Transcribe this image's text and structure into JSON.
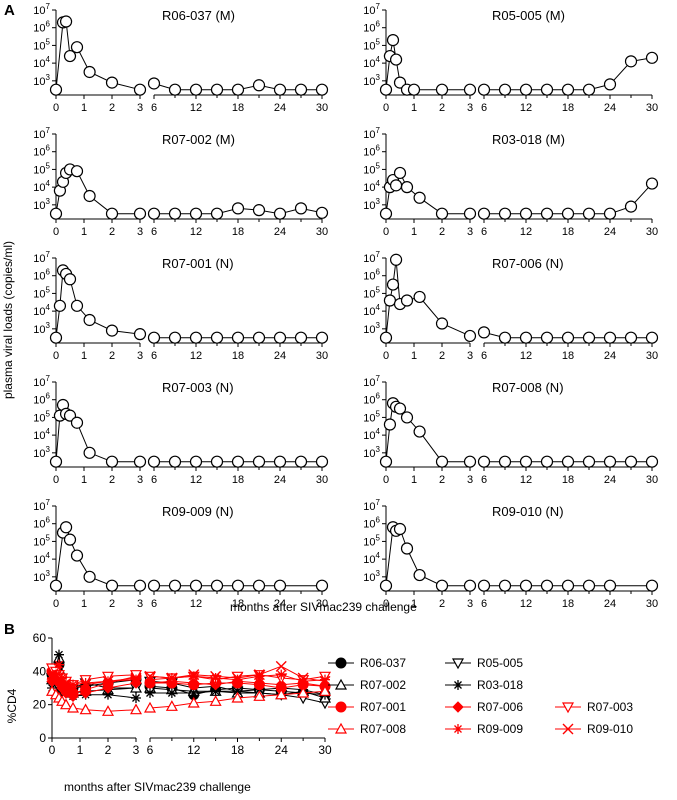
{
  "panel_a_label": "A",
  "panel_b_label": "B",
  "chart_data": [
    {
      "panel": "A",
      "type": "line",
      "log_scale_y": true,
      "ylabel": "plasma viral loads (copies/ml)",
      "xlabel": "months after SIVmac239 challenge",
      "y_ticks": [
        "10^3",
        "10^4",
        "10^5",
        "10^6",
        "10^7"
      ],
      "x_ticks_early": [
        0,
        1,
        2,
        3
      ],
      "x_ticks_late": [
        6,
        12,
        18,
        24,
        30
      ],
      "xlim_early": [
        0,
        3
      ],
      "xlim_late": [
        6,
        30
      ],
      "ylim_log10": [
        2.2,
        7
      ],
      "marker": "open-circle",
      "series": [
        {
          "name": "R06-037 (M)",
          "early": {
            "x": [
              0,
              0.25,
              0.36,
              0.5,
              0.75,
              1.2,
              2,
              3
            ],
            "y": [
              2.5,
              6.3,
              6.35,
              4.4,
              4.9,
              3.5,
              2.9,
              2.5
            ]
          },
          "late": {
            "x": [
              6,
              9,
              12,
              15,
              18,
              21,
              24,
              27,
              30
            ],
            "y": [
              2.85,
              2.5,
              2.5,
              2.5,
              2.5,
              2.75,
              2.5,
              2.5,
              2.5
            ]
          }
        },
        {
          "name": "R05-005 (M)",
          "early": {
            "x": [
              0,
              0.14,
              0.25,
              0.36,
              0.5,
              0.75,
              1,
              2,
              3
            ],
            "y": [
              2.5,
              4.4,
              5.3,
              4.2,
              2.9,
              2.5,
              2.5,
              2.5,
              2.5
            ]
          },
          "late": {
            "x": [
              6,
              9,
              12,
              15,
              18,
              21,
              24,
              27,
              30
            ],
            "y": [
              2.5,
              2.5,
              2.5,
              2.5,
              2.5,
              2.5,
              2.8,
              4.1,
              4.3
            ]
          }
        },
        {
          "name": "R07-002 (M)",
          "early": {
            "x": [
              0,
              0.14,
              0.25,
              0.36,
              0.5,
              0.75,
              1.2,
              2,
              3
            ],
            "y": [
              2.5,
              3.8,
              4.3,
              4.8,
              5.0,
              4.9,
              3.5,
              2.5,
              2.5
            ]
          },
          "late": {
            "x": [
              6,
              9,
              12,
              15,
              18,
              21,
              24,
              27,
              30
            ],
            "y": [
              2.5,
              2.5,
              2.5,
              2.5,
              2.8,
              2.7,
              2.5,
              2.8,
              2.55
            ]
          }
        },
        {
          "name": "R03-018 (M)",
          "early": {
            "x": [
              0,
              0.14,
              0.25,
              0.36,
              0.5,
              0.75,
              1.2,
              2,
              3
            ],
            "y": [
              2.5,
              4.0,
              4.4,
              4.1,
              4.8,
              4.0,
              3.4,
              2.5,
              2.5
            ]
          },
          "late": {
            "x": [
              6,
              9,
              12,
              15,
              18,
              21,
              24,
              27,
              30
            ],
            "y": [
              2.5,
              2.5,
              2.5,
              2.5,
              2.5,
              2.5,
              2.5,
              2.9,
              4.2
            ]
          }
        },
        {
          "name": "R07-001 (N)",
          "early": {
            "x": [
              0,
              0.14,
              0.25,
              0.36,
              0.5,
              0.75,
              1.2,
              2,
              3
            ],
            "y": [
              2.5,
              4.3,
              6.3,
              6.1,
              5.8,
              4.3,
              3.5,
              2.9,
              2.7
            ]
          },
          "late": {
            "x": [
              6,
              9,
              12,
              15,
              18,
              21,
              24,
              27,
              30
            ],
            "y": [
              2.5,
              2.5,
              2.5,
              2.5,
              2.5,
              2.5,
              2.5,
              2.5,
              2.5
            ]
          }
        },
        {
          "name": "R07-006 (N)",
          "early": {
            "x": [
              0,
              0.14,
              0.25,
              0.36,
              0.5,
              0.75,
              1.2,
              2,
              3
            ],
            "y": [
              2.5,
              4.6,
              5.5,
              6.9,
              4.4,
              4.6,
              4.8,
              3.3,
              2.6
            ]
          },
          "late": {
            "x": [
              6,
              9,
              12,
              15,
              18,
              21,
              24,
              27,
              30
            ],
            "y": [
              2.8,
              2.5,
              2.5,
              2.5,
              2.5,
              2.5,
              2.5,
              2.5,
              2.5
            ]
          }
        },
        {
          "name": "R07-003 (N)",
          "early": {
            "x": [
              0,
              0.14,
              0.25,
              0.36,
              0.5,
              0.75,
              1.2,
              2,
              3
            ],
            "y": [
              2.5,
              5.1,
              5.7,
              5.2,
              5.1,
              4.7,
              3.0,
              2.5,
              2.5
            ]
          },
          "late": {
            "x": [
              6,
              9,
              12,
              15,
              18,
              21,
              24,
              27,
              30
            ],
            "y": [
              2.5,
              2.5,
              2.5,
              2.5,
              2.5,
              2.5,
              2.5,
              2.5,
              2.5
            ]
          }
        },
        {
          "name": "R07-008 (N)",
          "early": {
            "x": [
              0,
              0.14,
              0.25,
              0.36,
              0.5,
              0.75,
              1.2,
              2,
              3
            ],
            "y": [
              2.5,
              4.6,
              5.8,
              5.6,
              5.5,
              5.0,
              4.2,
              2.5,
              2.5
            ]
          },
          "late": {
            "x": [
              6,
              9,
              12,
              15,
              18,
              21,
              24,
              27,
              30
            ],
            "y": [
              2.5,
              2.5,
              2.5,
              2.5,
              2.5,
              2.5,
              2.5,
              2.5,
              2.5
            ]
          }
        },
        {
          "name": "R09-009 (N)",
          "early": {
            "x": [
              0,
              0.25,
              0.36,
              0.5,
              0.75,
              1.2,
              2,
              3
            ],
            "y": [
              2.5,
              5.5,
              5.8,
              5.1,
              4.2,
              3.0,
              2.5,
              2.5
            ]
          },
          "late": {
            "x": [
              6,
              9,
              12,
              15,
              18,
              21,
              24,
              30
            ],
            "y": [
              2.5,
              2.5,
              2.5,
              2.5,
              2.5,
              2.5,
              2.5,
              2.5
            ]
          }
        },
        {
          "name": "R09-010 (N)",
          "early": {
            "x": [
              0,
              0.25,
              0.36,
              0.5,
              0.75,
              1.2,
              2,
              3
            ],
            "y": [
              2.5,
              5.8,
              5.6,
              5.7,
              4.6,
              3.1,
              2.5,
              2.5
            ]
          },
          "late": {
            "x": [
              6,
              9,
              12,
              15,
              18,
              21,
              24,
              30
            ],
            "y": [
              2.5,
              2.5,
              2.5,
              2.5,
              2.5,
              2.5,
              2.5,
              2.5
            ]
          }
        }
      ]
    },
    {
      "panel": "B",
      "type": "line",
      "ylabel": "%CD4",
      "xlabel": "months after SIVmac239 challenge",
      "ylim": [
        0,
        60
      ],
      "y_ticks": [
        0,
        20,
        40,
        60
      ],
      "x_ticks_early": [
        0,
        1,
        2,
        3
      ],
      "x_ticks_late": [
        6,
        12,
        18,
        24,
        30
      ],
      "xlim_early": [
        0,
        3
      ],
      "xlim_late": [
        6,
        30
      ],
      "legend_position": "right",
      "series": [
        {
          "name": "R06-037",
          "color": "#000000",
          "marker": "filled-circle",
          "early": {
            "x": [
              0,
              0.14,
              0.25,
              0.36,
              0.5,
              0.75,
              1.2,
              2,
              3
            ],
            "y": [
              38,
              36,
              44,
              34,
              32,
              30,
              31,
              33,
              35
            ]
          },
          "late": {
            "x": [
              6,
              9,
              12,
              15,
              18,
              21,
              24,
              27,
              30
            ],
            "y": [
              31,
              30,
              26,
              29,
              30,
              29,
              28,
              27,
              26
            ]
          }
        },
        {
          "name": "R05-005",
          "color": "#000000",
          "marker": "open-triangle-down",
          "early": {
            "x": [
              0,
              0.14,
              0.25,
              0.36,
              0.5,
              0.75,
              1.2,
              2,
              3
            ],
            "y": [
              36,
              34,
              30,
              28,
              32,
              30,
              33,
              30,
              30
            ]
          },
          "late": {
            "x": [
              6,
              9,
              12,
              15,
              18,
              21,
              24,
              27,
              30
            ],
            "y": [
              34,
              33,
              30,
              31,
              28,
              27,
              26,
              24,
              21
            ]
          }
        },
        {
          "name": "R07-002",
          "color": "#000000",
          "marker": "open-triangle-up",
          "early": {
            "x": [
              0,
              0.14,
              0.25,
              0.36,
              0.5,
              0.75,
              1.2,
              2,
              3
            ],
            "y": [
              35,
              40,
              48,
              38,
              30,
              27,
              28,
              29,
              30
            ]
          },
          "late": {
            "x": [
              6,
              9,
              12,
              15,
              18,
              21,
              24,
              27,
              30
            ],
            "y": [
              30,
              29,
              28,
              28,
              27,
              27,
              26,
              28,
              24
            ]
          }
        },
        {
          "name": "R03-018",
          "color": "#000000",
          "marker": "star",
          "early": {
            "x": [
              0,
              0.14,
              0.25,
              0.36,
              0.5,
              0.75,
              1.2,
              2,
              3
            ],
            "y": [
              30,
              42,
              50,
              35,
              28,
              25,
              26,
              26,
              24
            ]
          },
          "late": {
            "x": [
              6,
              9,
              12,
              15,
              18,
              21,
              24,
              27,
              30
            ],
            "y": [
              27,
              27,
              27,
              28,
              28,
              29,
              30,
              29,
              26
            ]
          }
        },
        {
          "name": "R07-001",
          "color": "#ff0000",
          "marker": "filled-circle",
          "early": {
            "x": [
              0,
              0.14,
              0.25,
              0.36,
              0.5,
              0.75,
              1.2,
              2,
              3
            ],
            "y": [
              40,
              38,
              34,
              32,
              30,
              27,
              29,
              33,
              37
            ]
          },
          "late": {
            "x": [
              6,
              9,
              12,
              15,
              18,
              21,
              24,
              27,
              30
            ],
            "y": [
              33,
              33,
              32,
              33,
              33,
              32,
              30,
              32,
              31
            ]
          }
        },
        {
          "name": "R07-006",
          "color": "#ff0000",
          "marker": "filled-diamond",
          "early": {
            "x": [
              0,
              0.14,
              0.25,
              0.36,
              0.5,
              0.75,
              1.2,
              2,
              3
            ],
            "y": [
              34,
              36,
              33,
              30,
              27,
              25,
              27,
              30,
              33
            ]
          },
          "late": {
            "x": [
              6,
              9,
              12,
              15,
              18,
              21,
              24,
              27,
              30
            ],
            "y": [
              33,
              34,
              33,
              32,
              34,
              33,
              32,
              33,
              31
            ]
          }
        },
        {
          "name": "R07-003",
          "color": "#ff0000",
          "marker": "open-triangle-down",
          "early": {
            "x": [
              0,
              0.14,
              0.25,
              0.36,
              0.5,
              0.75,
              1.2,
              2,
              3
            ],
            "y": [
              42,
              40,
              38,
              36,
              34,
              32,
              35,
              37,
              38
            ]
          },
          "late": {
            "x": [
              6,
              9,
              12,
              15,
              18,
              21,
              24,
              27,
              30
            ],
            "y": [
              37,
              36,
              37,
              35,
              37,
              38,
              36,
              35,
              37
            ]
          }
        },
        {
          "name": "R07-008",
          "color": "#ff0000",
          "marker": "open-triangle-up",
          "early": {
            "x": [
              0,
              0.14,
              0.25,
              0.36,
              0.5,
              0.75,
              1.2,
              2,
              3
            ],
            "y": [
              28,
              26,
              24,
              22,
              20,
              18,
              17,
              16,
              17
            ]
          },
          "late": {
            "x": [
              6,
              9,
              12,
              15,
              18,
              21,
              24,
              27,
              30
            ],
            "y": [
              18,
              19,
              21,
              22,
              24,
              25,
              26,
              27,
              28
            ]
          }
        },
        {
          "name": "R09-009",
          "color": "#ff0000",
          "marker": "star",
          "early": {
            "x": [
              0,
              0.14,
              0.25,
              0.36,
              0.5,
              0.75,
              1.2,
              2,
              3
            ],
            "y": [
              36,
              38,
              44,
              36,
              33,
              32,
              33,
              34,
              35
            ]
          },
          "late": {
            "x": [
              6,
              9,
              12,
              15,
              18,
              21,
              24,
              27,
              30
            ],
            "y": [
              35,
              36,
              37,
              36,
              35,
              37,
              38,
              34,
              35
            ]
          }
        },
        {
          "name": "R09-010",
          "color": "#ff0000",
          "marker": "x",
          "early": {
            "x": [
              0,
              0.14,
              0.25,
              0.36,
              0.5,
              0.75,
              1.2,
              2,
              3
            ],
            "y": [
              38,
              37,
              36,
              34,
              32,
              30,
              32,
              34,
              36
            ]
          },
          "late": {
            "x": [
              6,
              9,
              12,
              15,
              18,
              21,
              24,
              27,
              30
            ],
            "y": [
              37,
              36,
              38,
              37,
              36,
              38,
              43,
              36,
              34
            ]
          }
        }
      ]
    }
  ]
}
